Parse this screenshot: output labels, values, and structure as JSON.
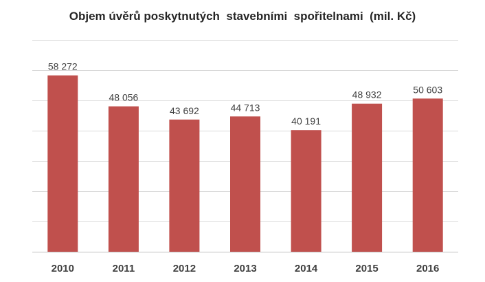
{
  "chart_data": {
    "type": "bar",
    "title": "Objem úvěrů poskytnutých  stavebními  spořitelnami  (mil. Kč)",
    "categories": [
      "2010",
      "2011",
      "2012",
      "2013",
      "2014",
      "2015",
      "2016"
    ],
    "values": [
      58272,
      48056,
      43692,
      44713,
      40191,
      48932,
      50603
    ],
    "value_labels": [
      "58 272",
      "48 056",
      "43 692",
      "44 713",
      "40 191",
      "48 932",
      "50 603"
    ],
    "xlabel": "",
    "ylabel": "",
    "ylim": [
      0,
      70000
    ],
    "grid": true,
    "legend": "none",
    "bar_color": "#C0504D",
    "grid_color": "#D9D9D9",
    "axis_color": "#BFBFBF",
    "text_color": "#404040"
  }
}
